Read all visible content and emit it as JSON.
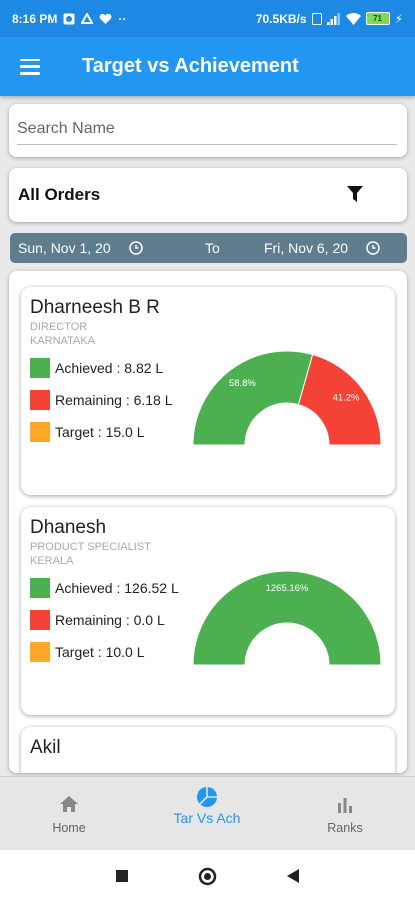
{
  "status_bar": {
    "time": "8:16 PM",
    "network_speed": "70.5KB/s",
    "battery_level": "71"
  },
  "app_bar": {
    "title": "Target vs Achievement",
    "menu_icon": "hamburger-menu-icon"
  },
  "search": {
    "placeholder": "Search Name",
    "value": ""
  },
  "filter": {
    "label": "All Orders",
    "icon": "filter-funnel-icon"
  },
  "date_range": {
    "from": "Sun, Nov 1, 20",
    "to_label": "To",
    "to": "Fri, Nov 6, 20"
  },
  "colors": {
    "achieved": "#4caf50",
    "remaining": "#f44336",
    "target": "#ffa726",
    "primary": "#2196f3"
  },
  "employees": [
    {
      "name": "Dharneesh B R",
      "role": "DIRECTOR",
      "region": "KARNATAKA",
      "achieved_label": "Achieved : 8.82 L",
      "remaining_label": "Remaining : 6.18 L",
      "target_label": "Target : 15.0 L",
      "achieved_pct": 58.8,
      "remaining_pct": 41.2,
      "achieved_text": "58.8%",
      "remaining_text": "41.2%"
    },
    {
      "name": "Dhanesh",
      "role": "PRODUCT SPECIALIST",
      "region": "KERALA",
      "achieved_label": "Achieved : 126.52 L",
      "remaining_label": "Remaining : 0.0 L",
      "target_label": "Target : 10.0 L",
      "achieved_pct": 100,
      "remaining_pct": 0,
      "achieved_text": "1265.16%",
      "remaining_text": ""
    },
    {
      "name": "Akil"
    }
  ],
  "bottom_nav": {
    "items": [
      {
        "label": "Home",
        "icon": "home-icon"
      },
      {
        "label": "Tar Vs Ach",
        "icon": "pie-chart-icon"
      },
      {
        "label": "Ranks",
        "icon": "bar-chart-icon"
      }
    ],
    "active_index": 1
  }
}
